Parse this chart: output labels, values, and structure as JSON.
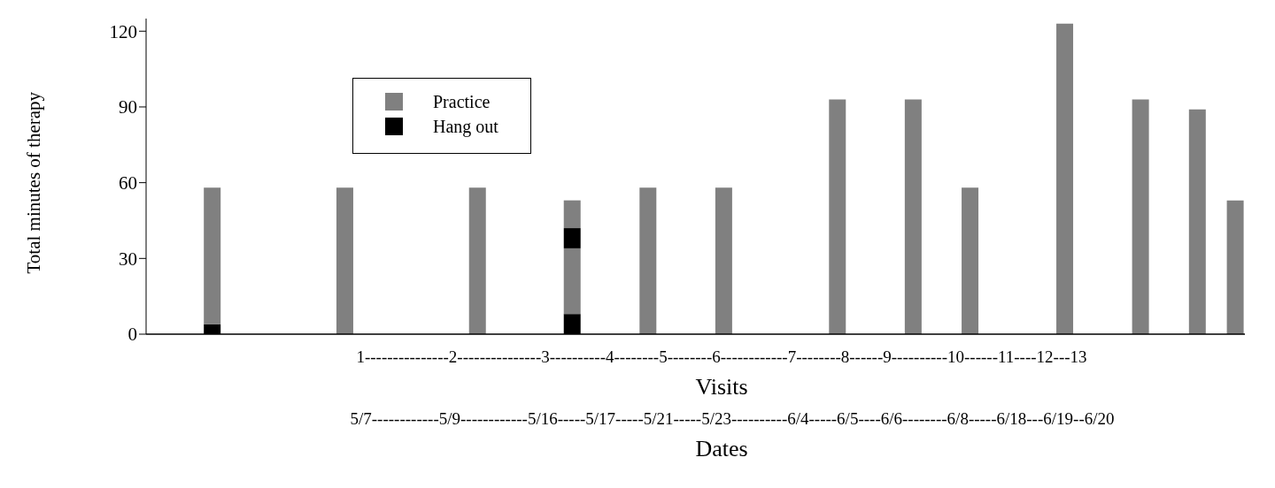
{
  "chart_data": {
    "type": "bar",
    "stacked": true,
    "ylabel": "Total minutes of therapy",
    "xlabel": "Visits",
    "categories": [
      null,
      null,
      null,
      null,
      null,
      null,
      null,
      null,
      null,
      null,
      null,
      null,
      null,
      null,
      null,
      null,
      null,
      null,
      null,
      null,
      null,
      null,
      null,
      null,
      null,
      null,
      null,
      null,
      null,
      null,
      null,
      null,
      null,
      null,
      null,
      null,
      null,
      null,
      null,
      null,
      null,
      null,
      null,
      null,
      null,
      null,
      null,
      null,
      null,
      null,
      null,
      null,
      null,
      null,
      null,
      null,
      null,
      null
    ],
    "series": [
      {
        "name": "Hang out",
        "color": "#000000",
        "values": [
          null,
          null,
          null,
          4,
          null,
          null,
          null,
          null,
          null,
          null,
          null,
          null,
          null,
          null,
          null,
          null,
          null,
          null,
          null,
          null,
          null,
          null,
          8,
          null,
          null,
          null,
          null,
          null,
          null,
          null,
          null,
          null,
          null,
          null,
          null,
          null,
          null,
          null,
          null,
          null,
          null,
          null,
          null,
          null,
          null,
          null,
          null,
          null,
          null,
          null,
          null,
          null,
          null,
          null,
          null,
          null,
          null,
          null
        ]
      },
      {
        "name": "Practice",
        "color": "#808080",
        "values": [
          null,
          null,
          null,
          54,
          null,
          null,
          null,
          null,
          null,
          null,
          58,
          null,
          null,
          null,
          null,
          null,
          null,
          58,
          null,
          null,
          null,
          null,
          26,
          null,
          null,
          null,
          58,
          null,
          null,
          null,
          58,
          null,
          null,
          null,
          null,
          null,
          93,
          null,
          null,
          null,
          93,
          null,
          null,
          58,
          null,
          null,
          null,
          null,
          123,
          null,
          null,
          null,
          93,
          null,
          null,
          89,
          null,
          53
        ]
      },
      {
        "color": "#000000",
        "values": [
          null,
          null,
          null,
          null,
          null,
          null,
          null,
          null,
          null,
          null,
          null,
          null,
          null,
          null,
          null,
          null,
          null,
          null,
          null,
          null,
          null,
          null,
          8,
          null,
          null,
          null,
          null,
          null,
          null,
          null,
          null,
          null,
          null,
          null,
          null,
          null,
          null,
          null,
          null,
          null,
          null,
          null,
          null,
          null,
          null,
          null,
          null,
          null,
          null,
          null,
          null,
          null,
          null,
          null,
          null,
          null,
          null,
          null
        ]
      },
      {
        "color": "#808080",
        "values": [
          null,
          null,
          null,
          null,
          null,
          null,
          null,
          null,
          null,
          null,
          null,
          null,
          null,
          null,
          null,
          null,
          null,
          null,
          null,
          null,
          null,
          null,
          11,
          null,
          null,
          null,
          null,
          null,
          null,
          null,
          null,
          null,
          null,
          null,
          null,
          null,
          null,
          null,
          null,
          null,
          null,
          null,
          null,
          null,
          null,
          null,
          null,
          null,
          null,
          null,
          null,
          null,
          null,
          null,
          null,
          null,
          null,
          null
        ]
      }
    ],
    "ylim": [
      0,
      125
    ],
    "yticks": [
      0,
      30,
      60,
      90,
      120
    ],
    "grid": false,
    "legend": "top left",
    "annotations": [
      "1---------------2---------------3----------4--------5--------6------------7--------8------9----------10------11----12---13",
      "5/7------------5/9------------5/16-----5/17-----5/21-----5/23----------6/4-----6/5----6/6--------6/8-----6/18---6/19--6/20",
      "Dates"
    ]
  }
}
